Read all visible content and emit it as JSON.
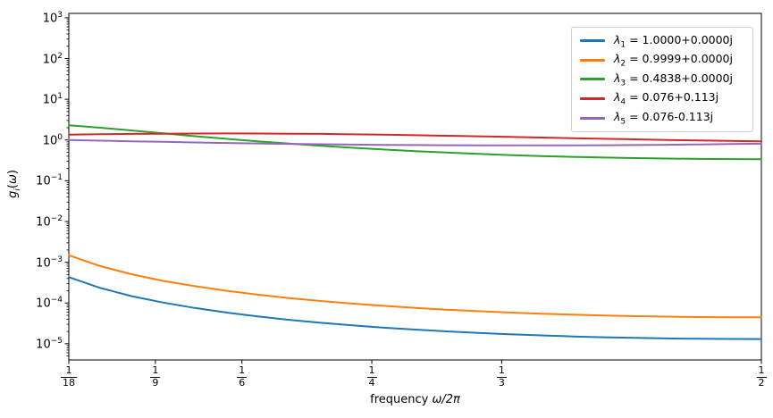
{
  "figure": {
    "background": "#ffffff",
    "xlabel_prefix": "frequency ",
    "xlabel_math": "ω/2π",
    "ylabel_parts": {
      "base": "g",
      "sub": "i",
      "omega": "ω"
    }
  },
  "legend": {
    "symbol": "λ",
    "equals": "=",
    "position": "upper right",
    "frame_color": "#cccccc"
  },
  "chart_data": {
    "type": "line",
    "title": "",
    "xlabel": "frequency ω/2π",
    "ylabel": "g_i(ω)",
    "x_scale": "linear",
    "y_scale": "log",
    "grid": false,
    "legend_position": "upper right",
    "xlim": [
      0.055556,
      0.5
    ],
    "ylim": [
      4e-06,
      1280
    ],
    "y_tick_exponents": [
      3,
      2,
      1,
      0,
      -1,
      -2,
      -3,
      -4,
      -5
    ],
    "y_tick_base": "10",
    "x_ticks": [
      {
        "num": "1",
        "den": "18",
        "value": 0.055556
      },
      {
        "num": "1",
        "den": "9",
        "value": 0.111111
      },
      {
        "num": "1",
        "den": "6",
        "value": 0.166667
      },
      {
        "num": "1",
        "den": "4",
        "value": 0.25
      },
      {
        "num": "1",
        "den": "3",
        "value": 0.333333
      },
      {
        "num": "1",
        "den": "2",
        "value": 0.5
      }
    ],
    "x": [
      0.0556,
      0.0758,
      0.096,
      0.1162,
      0.1364,
      0.1566,
      0.1768,
      0.197,
      0.2172,
      0.2374,
      0.2576,
      0.2778,
      0.298,
      0.3182,
      0.3384,
      0.3586,
      0.3788,
      0.399,
      0.4192,
      0.4394,
      0.4596,
      0.4798,
      0.5
    ],
    "series": [
      {
        "name": "λ1 = 1.0000+0.0000j",
        "lambda_sub": "1",
        "eigenvalue": "1.0000+0.0000j",
        "color": "#1f77b4",
        "values": [
          0.000431,
          0.000234,
          0.000147,
          0.000102,
          7.53e-05,
          5.83e-05,
          4.68e-05,
          3.86e-05,
          3.27e-05,
          2.83e-05,
          2.48e-05,
          2.22e-05,
          2.01e-05,
          1.84e-05,
          1.7e-05,
          1.6e-05,
          1.51e-05,
          1.44e-05,
          1.39e-05,
          1.35e-05,
          1.32e-05,
          1.31e-05,
          1.3e-05
        ]
      },
      {
        "name": "λ2 = 0.9999+0.0000j",
        "lambda_sub": "2",
        "eigenvalue": "0.9999+0.0000j",
        "color": "#ff7f0e",
        "values": [
          0.00148,
          0.000801,
          0.000505,
          0.000349,
          0.000258,
          0.0002,
          0.00016,
          0.000132,
          0.000112,
          9.67e-05,
          8.5e-05,
          7.58e-05,
          6.86e-05,
          6.29e-05,
          5.83e-05,
          5.46e-05,
          5.16e-05,
          4.93e-05,
          4.75e-05,
          4.62e-05,
          4.52e-05,
          4.47e-05,
          4.45e-05
        ]
      },
      {
        "name": "λ3 = 0.4838+0.0000j",
        "lambda_sub": "3",
        "eigenvalue": "0.4838+0.0000j",
        "color": "#2ca02c",
        "values": [
          2.3,
          2.0,
          1.71,
          1.46,
          1.24,
          1.07,
          0.929,
          0.814,
          0.721,
          0.645,
          0.584,
          0.533,
          0.491,
          0.457,
          0.428,
          0.405,
          0.386,
          0.371,
          0.359,
          0.35,
          0.344,
          0.341,
          0.339
        ]
      },
      {
        "name": "λ4 = 0.076+0.113j",
        "lambda_sub": "4",
        "eigenvalue": "0.076+0.113j",
        "color": "#d62728",
        "values": [
          1.35,
          1.39,
          1.41,
          1.43,
          1.44,
          1.45,
          1.44,
          1.43,
          1.41,
          1.38,
          1.35,
          1.31,
          1.27,
          1.23,
          1.19,
          1.15,
          1.11,
          1.07,
          1.04,
          1.0,
          0.974,
          0.947,
          0.923
        ]
      },
      {
        "name": "λ5 = 0.076-0.113j",
        "lambda_sub": "5",
        "eigenvalue": "0.076-0.113j",
        "color": "#9467bd",
        "values": [
          0.997,
          0.963,
          0.93,
          0.9,
          0.872,
          0.846,
          0.824,
          0.803,
          0.786,
          0.771,
          0.759,
          0.75,
          0.743,
          0.738,
          0.736,
          0.737,
          0.74,
          0.745,
          0.753,
          0.764,
          0.777,
          0.793,
          0.812
        ]
      }
    ]
  }
}
